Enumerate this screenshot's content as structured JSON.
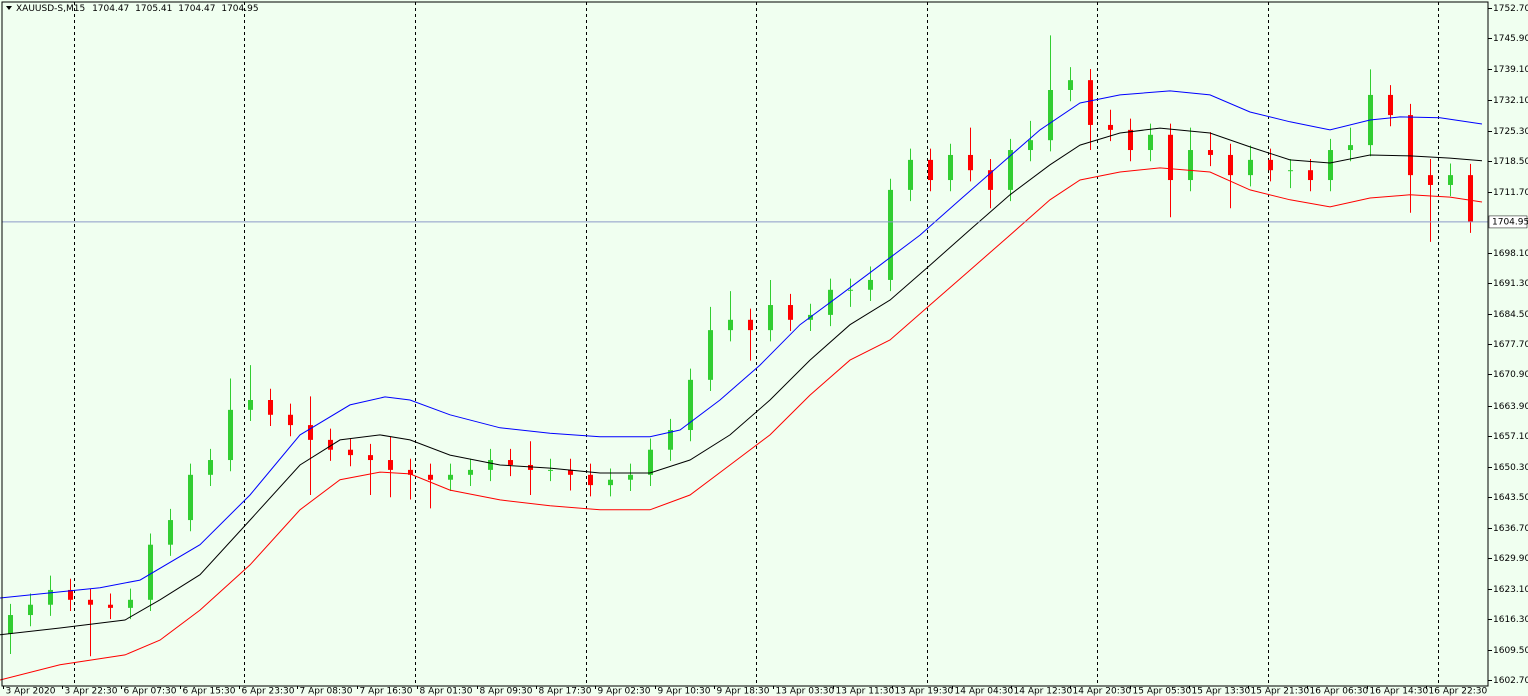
{
  "chart_data": {
    "type": "candlestick",
    "title": "XAUUSD-S,M15",
    "header_values": [
      1704.47,
      1705.41,
      1704.47,
      1704.95
    ],
    "current_price": 1704.95,
    "up_color": "#32cd32",
    "down_color": "#ff0000",
    "background": "#f0fff0",
    "price_line_color": "#8c9ac8",
    "ylim": [
      1601.36,
      1754.49
    ],
    "xlim": [
      0,
      74.4
    ],
    "yticks": [
      {
        "value": 1752.7,
        "label": "1752.70"
      },
      {
        "value": 1745.9,
        "label": "1745.90"
      },
      {
        "value": 1739.1,
        "label": "1739.10"
      },
      {
        "value": 1732.1,
        "label": "1732.10"
      },
      {
        "value": 1725.3,
        "label": "1725.30"
      },
      {
        "value": 1718.5,
        "label": "1718.50"
      },
      {
        "value": 1711.7,
        "label": "1711.70"
      },
      {
        "value": 1698.1,
        "label": "1698.10"
      },
      {
        "value": 1691.3,
        "label": "1691.30"
      },
      {
        "value": 1684.5,
        "label": "1684.50"
      },
      {
        "value": 1677.7,
        "label": "1677.70"
      },
      {
        "value": 1670.9,
        "label": "1670.90"
      },
      {
        "value": 1663.9,
        "label": "1663.90"
      },
      {
        "value": 1657.1,
        "label": "1657.10"
      },
      {
        "value": 1650.3,
        "label": "1650.30"
      },
      {
        "value": 1643.5,
        "label": "1643.50"
      },
      {
        "value": 1636.7,
        "label": "1636.70"
      },
      {
        "value": 1629.9,
        "label": "1629.90"
      },
      {
        "value": 1623.1,
        "label": "1623.10"
      },
      {
        "value": 1616.3,
        "label": "1616.30"
      },
      {
        "value": 1609.5,
        "label": "1609.50"
      },
      {
        "value": 1602.7,
        "label": "1602.70"
      }
    ],
    "xticks": [
      {
        "value": 0.15,
        "label": "3 Apr 2020"
      },
      {
        "value": 3.1,
        "label": "3 Apr 22:30"
      },
      {
        "value": 6.05,
        "label": "6 Apr 07:30"
      },
      {
        "value": 9,
        "label": "6 Apr 15:30"
      },
      {
        "value": 11.95,
        "label": "6 Apr 23:30"
      },
      {
        "value": 14.85,
        "label": "7 Apr 08:30"
      },
      {
        "value": 17.85,
        "label": "7 Apr 16:30"
      },
      {
        "value": 20.85,
        "label": "8 Apr 01:30"
      },
      {
        "value": 23.85,
        "label": "8 Apr 09:30"
      },
      {
        "value": 26.8,
        "label": "8 Apr 17:30"
      },
      {
        "value": 29.75,
        "label": "9 Apr 02:30"
      },
      {
        "value": 32.75,
        "label": "9 Apr 10:30"
      },
      {
        "value": 35.7,
        "label": "9 Apr 18:30"
      },
      {
        "value": 38.65,
        "label": "13 Apr 03:30"
      },
      {
        "value": 41.65,
        "label": "13 Apr 11:30"
      },
      {
        "value": 44.6,
        "label": "13 Apr 19:30"
      },
      {
        "value": 47.6,
        "label": "14 Apr 04:30"
      },
      {
        "value": 50.55,
        "label": "14 Apr 12:30"
      },
      {
        "value": 53.5,
        "label": "14 Apr 20:30"
      },
      {
        "value": 56.5,
        "label": "15 Apr 05:30"
      },
      {
        "value": 59.45,
        "label": "15 Apr 13:30"
      },
      {
        "value": 62.4,
        "label": "15 Apr 21:30"
      },
      {
        "value": 65.35,
        "label": "16 Apr 06:30"
      },
      {
        "value": 68.35,
        "label": "16 Apr 14:30"
      },
      {
        "value": 71.3,
        "label": "16 Apr 22:30"
      }
    ],
    "day_separators": [
      3.7,
      12.2,
      20.75,
      29.3,
      37.8,
      46.35,
      54.85,
      63.4,
      71.9
    ],
    "open": [
      1613.0,
      1617.2,
      1619.5,
      1622.8,
      1620.6,
      1619.5,
      1618.8,
      1620.6,
      1632.9,
      1638.4,
      1648.5,
      1651.8,
      1663.0,
      1665.2,
      1661.9,
      1659.6,
      1656.3,
      1654.1,
      1652.9,
      1651.8,
      1649.6,
      1648.5,
      1647.4,
      1648.5,
      1649.6,
      1651.8,
      1650.7,
      1649.6,
      1649.6,
      1648.5,
      1646.2,
      1647.4,
      1648.5,
      1654.1,
      1658.5,
      1669.7,
      1680.8,
      1683.1,
      1680.8,
      1686.4,
      1683.1,
      1684.2,
      1689.8,
      1689.8,
      1692.0,
      1712.1,
      1718.8,
      1714.3,
      1719.9,
      1716.5,
      1712.1,
      1721.0,
      1723.2,
      1734.4,
      1736.6,
      1726.6,
      1725.5,
      1721.0,
      1724.4,
      1714.3,
      1721.0,
      1719.9,
      1715.4,
      1718.8,
      1716.5,
      1716.5,
      1714.3,
      1721.0,
      1722.1,
      1733.3,
      1728.8,
      1715.4,
      1713.2,
      1715.4
    ],
    "high": [
      1619.7,
      1622.0,
      1626.0,
      1625.3,
      1623.1,
      1622.0,
      1623.1,
      1635.4,
      1640.9,
      1651.0,
      1654.3,
      1670.0,
      1673.0,
      1667.7,
      1664.4,
      1666.0,
      1658.8,
      1656.6,
      1655.4,
      1657.0,
      1652.1,
      1651.0,
      1651.0,
      1652.1,
      1654.3,
      1654.3,
      1656.0,
      1652.1,
      1652.1,
      1651.0,
      1649.9,
      1651.0,
      1656.6,
      1661.0,
      1672.2,
      1686.0,
      1689.5,
      1685.6,
      1692.0,
      1688.9,
      1686.7,
      1692.3,
      1692.3,
      1695.0,
      1714.6,
      1721.3,
      1721.3,
      1722.4,
      1726.0,
      1719.0,
      1723.5,
      1727.5,
      1746.6,
      1739.5,
      1739.1,
      1730.0,
      1728.0,
      1726.9,
      1726.9,
      1726.0,
      1725.0,
      1722.4,
      1722.0,
      1721.3,
      1719.0,
      1719.0,
      1723.5,
      1726.0,
      1739.0,
      1735.5,
      1731.3,
      1719.0,
      1718.0,
      1717.9
    ],
    "low": [
      1608.5,
      1614.7,
      1617.0,
      1618.1,
      1608.0,
      1616.3,
      1616.3,
      1618.1,
      1630.4,
      1635.9,
      1646.0,
      1649.3,
      1660.5,
      1659.4,
      1657.1,
      1644.0,
      1651.6,
      1650.4,
      1644.0,
      1643.5,
      1643.0,
      1641.0,
      1644.9,
      1646.0,
      1647.1,
      1648.2,
      1644.0,
      1647.1,
      1645.0,
      1643.7,
      1643.7,
      1644.9,
      1646.0,
      1651.6,
      1656.0,
      1667.2,
      1678.3,
      1674.0,
      1678.3,
      1680.6,
      1680.6,
      1681.7,
      1686.0,
      1687.3,
      1689.5,
      1709.6,
      1711.8,
      1711.8,
      1714.0,
      1708.0,
      1709.6,
      1718.5,
      1720.7,
      1731.9,
      1721.0,
      1723.0,
      1718.5,
      1718.5,
      1706.0,
      1711.8,
      1717.4,
      1708.0,
      1712.9,
      1714.0,
      1712.5,
      1711.8,
      1711.8,
      1718.5,
      1719.6,
      1726.3,
      1707.0,
      1700.5,
      1710.7,
      1702.5
    ],
    "close": [
      1617.2,
      1619.5,
      1622.8,
      1620.6,
      1619.5,
      1618.8,
      1620.6,
      1632.9,
      1638.4,
      1648.5,
      1651.8,
      1663.0,
      1665.2,
      1661.9,
      1659.6,
      1656.3,
      1654.1,
      1652.9,
      1651.8,
      1649.6,
      1648.5,
      1647.4,
      1648.5,
      1649.6,
      1651.8,
      1650.7,
      1649.6,
      1649.6,
      1648.5,
      1646.2,
      1647.4,
      1648.5,
      1654.1,
      1658.5,
      1669.7,
      1680.8,
      1683.1,
      1680.8,
      1686.4,
      1683.1,
      1684.2,
      1689.8,
      1689.8,
      1692.0,
      1712.1,
      1718.8,
      1714.3,
      1719.9,
      1716.5,
      1712.1,
      1721.0,
      1723.2,
      1734.4,
      1736.6,
      1726.6,
      1725.5,
      1721.0,
      1724.4,
      1714.3,
      1721.0,
      1719.9,
      1715.4,
      1718.8,
      1716.5,
      1716.5,
      1714.3,
      1721.0,
      1722.1,
      1733.3,
      1728.8,
      1715.4,
      1713.2,
      1715.4,
      1704.95
    ],
    "lines": [
      {
        "color": "#0000ff",
        "x": [
          0,
          5,
          7,
          10,
          12.5,
          15,
          17.5,
          19.25,
          20.5,
          22.5,
          25,
          27.5,
          30,
          32.5,
          34,
          36,
          38,
          40,
          42,
          44,
          46,
          48,
          50,
          52,
          54,
          56,
          58.5,
          60.5,
          62.5,
          64.5,
          66.5,
          68.5,
          70,
          72,
          74.1
        ],
        "values": [
          1621.0,
          1623.3,
          1625.0,
          1632.9,
          1644.0,
          1657.4,
          1664.1,
          1665.9,
          1665.2,
          1661.9,
          1659.0,
          1657.8,
          1657.0,
          1657.0,
          1658.5,
          1665.2,
          1673.0,
          1682.0,
          1688.6,
          1695.3,
          1702.0,
          1709.9,
          1717.7,
          1725.5,
          1731.5,
          1733.3,
          1734.2,
          1733.3,
          1729.5,
          1727.3,
          1725.5,
          1727.7,
          1728.4,
          1728.2,
          1726.8
        ]
      },
      {
        "color": "#000000",
        "x": [
          0,
          3,
          6.25,
          8,
          10,
          12.5,
          15,
          17,
          19,
          20.5,
          22.5,
          25,
          27.5,
          30,
          32.5,
          34.5,
          36.5,
          38.5,
          40.5,
          42.5,
          44.5,
          46.5,
          48.5,
          50.5,
          52.5,
          54,
          56,
          58,
          60.5,
          62.5,
          64.5,
          66.5,
          68.5,
          70.5,
          72.5,
          74.1
        ],
        "values": [
          1612.8,
          1614.3,
          1616.1,
          1620.6,
          1626.2,
          1638.4,
          1650.7,
          1656.3,
          1657.4,
          1656.3,
          1652.9,
          1650.7,
          1650.0,
          1648.9,
          1648.9,
          1651.8,
          1657.4,
          1665.2,
          1674.1,
          1682.0,
          1687.5,
          1695.3,
          1703.2,
          1711.0,
          1717.7,
          1722.1,
          1724.8,
          1725.9,
          1724.8,
          1721.7,
          1718.8,
          1718.1,
          1719.9,
          1719.7,
          1719.2,
          1718.6
        ]
      },
      {
        "color": "#ff0000",
        "x": [
          0,
          3,
          6.25,
          8,
          10,
          12.5,
          15,
          17,
          19,
          20.5,
          22.5,
          25,
          27.5,
          30,
          32.5,
          34.5,
          36.5,
          38.5,
          40.5,
          42.5,
          44.5,
          46.5,
          48.5,
          50.5,
          52.5,
          54,
          56,
          58,
          60.5,
          62.5,
          64.5,
          66.5,
          68.5,
          70.5,
          72.5,
          74.1
        ],
        "values": [
          1602.7,
          1606.1,
          1608.3,
          1611.6,
          1618.3,
          1628.4,
          1640.7,
          1647.4,
          1649.1,
          1648.7,
          1645.1,
          1642.9,
          1641.6,
          1640.7,
          1640.7,
          1644.0,
          1650.7,
          1657.4,
          1666.3,
          1674.1,
          1678.6,
          1686.4,
          1694.2,
          1702.0,
          1709.9,
          1714.3,
          1716.1,
          1717.0,
          1716.1,
          1712.1,
          1709.9,
          1708.3,
          1710.3,
          1711.0,
          1710.5,
          1709.4
        ]
      }
    ]
  }
}
